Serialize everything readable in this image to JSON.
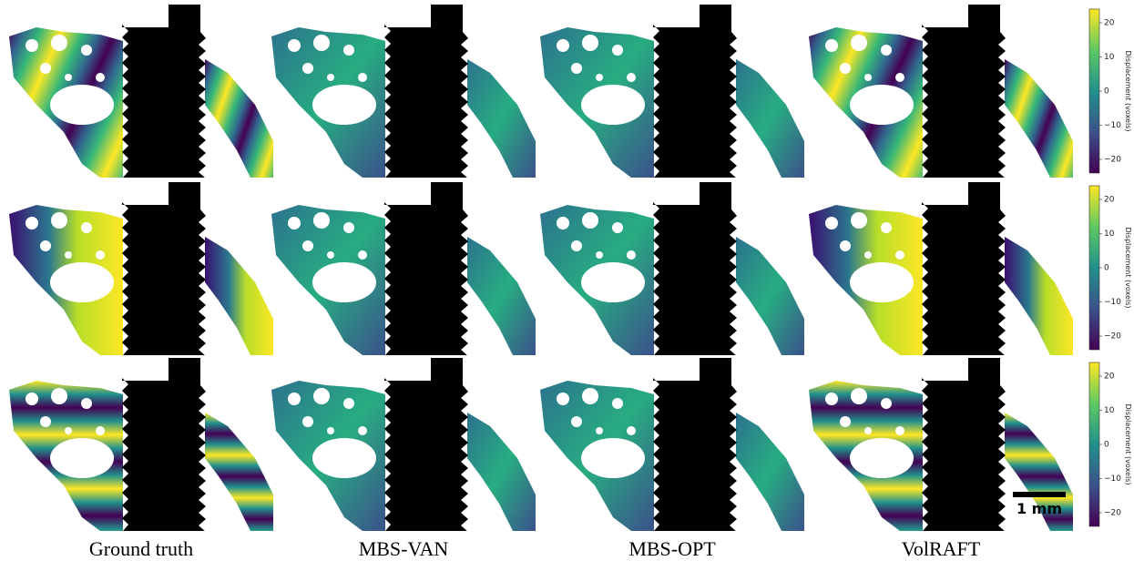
{
  "columns": [
    "Ground truth",
    "MBS-VAN",
    "MBS-OPT",
    "VolRAFT"
  ],
  "colorbars": [
    {
      "label": "Displacement (voxels)",
      "lim": [
        -24,
        24
      ],
      "ticks": [
        {
          "value": 20,
          "label": "20"
        },
        {
          "value": 10,
          "label": "10"
        },
        {
          "value": 0,
          "label": "0"
        },
        {
          "value": -10,
          "label": "−10"
        },
        {
          "value": -20,
          "label": "−20"
        }
      ]
    },
    {
      "label": "Displacement (voxels)",
      "lim": [
        -24,
        24
      ],
      "ticks": [
        {
          "value": 20,
          "label": "20"
        },
        {
          "value": 10,
          "label": "10"
        },
        {
          "value": 0,
          "label": "0"
        },
        {
          "value": -10,
          "label": "−10"
        },
        {
          "value": -20,
          "label": "−20"
        }
      ]
    },
    {
      "label": "Displacement (voxels)",
      "lim": [
        -24,
        24
      ],
      "ticks": [
        {
          "value": 20,
          "label": "20"
        },
        {
          "value": 10,
          "label": "10"
        },
        {
          "value": 0,
          "label": "0"
        },
        {
          "value": -10,
          "label": "−10"
        },
        {
          "value": -20,
          "label": "−20"
        }
      ]
    }
  ],
  "scale_bar": "1 mm"
}
